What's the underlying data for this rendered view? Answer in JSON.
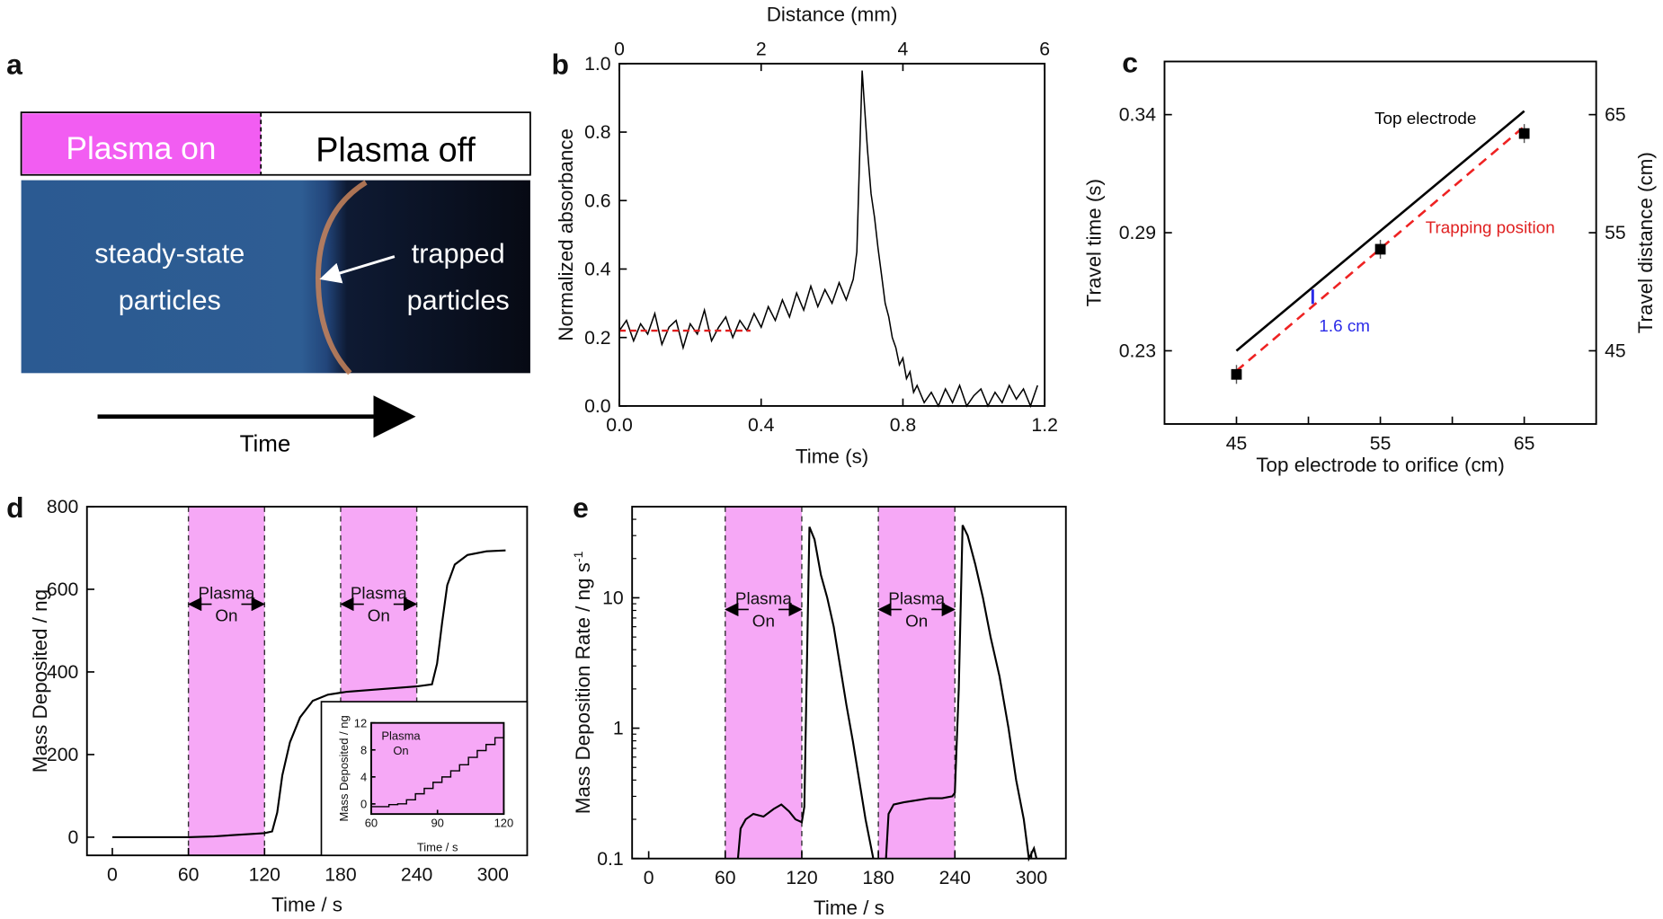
{
  "panel_labels": {
    "a": "a",
    "b": "b",
    "c": "c",
    "d": "d",
    "e": "e"
  },
  "panel_a": {
    "plasma_on": "Plasma on",
    "plasma_off": "Plasma off",
    "left_label": [
      "steady-state",
      "particles"
    ],
    "right_label": [
      "trapped",
      "particles"
    ],
    "arrow_label": "Time",
    "colors": {
      "plasma_on": "#f25df2",
      "steady": "#2e5d93",
      "trapped": "#0b1020",
      "front": "#c8845a"
    }
  },
  "chart_data": [
    {
      "id": "b",
      "type": "line",
      "xlabel": "Time (s)",
      "x2label": "Distance (mm)",
      "ylabel": "Normalized absorbance",
      "xlim": [
        0,
        1.2
      ],
      "x2lim": [
        0,
        6
      ],
      "ylim": [
        0,
        1.0
      ],
      "xticks": [
        {
          "v": 0,
          "l": "0.0"
        },
        {
          "v": 0.4,
          "l": "0.4"
        },
        {
          "v": 0.8,
          "l": "0.8"
        },
        {
          "v": 1.2,
          "l": "1.2"
        }
      ],
      "x2ticks": [
        {
          "v": 0,
          "l": "0"
        },
        {
          "v": 2,
          "l": "2"
        },
        {
          "v": 4,
          "l": "4"
        },
        {
          "v": 6,
          "l": "6"
        }
      ],
      "yticks": [
        {
          "v": 0,
          "l": "0.0"
        },
        {
          "v": 0.2,
          "l": "0.2"
        },
        {
          "v": 0.4,
          "l": "0.4"
        },
        {
          "v": 0.6,
          "l": "0.6"
        },
        {
          "v": 0.8,
          "l": "0.8"
        },
        {
          "v": 1.0,
          "l": "1.0"
        }
      ],
      "series": [
        {
          "color": "#000000",
          "points": [
            [
              0,
              0.22
            ],
            [
              0.02,
              0.25
            ],
            [
              0.04,
              0.19
            ],
            [
              0.06,
              0.24
            ],
            [
              0.08,
              0.21
            ],
            [
              0.1,
              0.27
            ],
            [
              0.12,
              0.18
            ],
            [
              0.14,
              0.23
            ],
            [
              0.16,
              0.25
            ],
            [
              0.18,
              0.17
            ],
            [
              0.2,
              0.24
            ],
            [
              0.22,
              0.21
            ],
            [
              0.24,
              0.28
            ],
            [
              0.26,
              0.19
            ],
            [
              0.28,
              0.23
            ],
            [
              0.3,
              0.26
            ],
            [
              0.32,
              0.2
            ],
            [
              0.34,
              0.25
            ],
            [
              0.36,
              0.22
            ],
            [
              0.38,
              0.27
            ],
            [
              0.4,
              0.23
            ],
            [
              0.42,
              0.29
            ],
            [
              0.44,
              0.25
            ],
            [
              0.46,
              0.31
            ],
            [
              0.48,
              0.26
            ],
            [
              0.5,
              0.33
            ],
            [
              0.52,
              0.28
            ],
            [
              0.54,
              0.35
            ],
            [
              0.56,
              0.29
            ],
            [
              0.58,
              0.34
            ],
            [
              0.6,
              0.3
            ],
            [
              0.62,
              0.36
            ],
            [
              0.64,
              0.31
            ],
            [
              0.66,
              0.37
            ],
            [
              0.67,
              0.45
            ],
            [
              0.68,
              0.8
            ],
            [
              0.685,
              0.98
            ],
            [
              0.69,
              0.9
            ],
            [
              0.7,
              0.75
            ],
            [
              0.71,
              0.62
            ],
            [
              0.72,
              0.55
            ],
            [
              0.73,
              0.46
            ],
            [
              0.74,
              0.38
            ],
            [
              0.75,
              0.3
            ],
            [
              0.76,
              0.26
            ],
            [
              0.77,
              0.2
            ],
            [
              0.78,
              0.17
            ],
            [
              0.79,
              0.12
            ],
            [
              0.8,
              0.14
            ],
            [
              0.81,
              0.08
            ],
            [
              0.82,
              0.1
            ],
            [
              0.83,
              0.04
            ],
            [
              0.84,
              0.06
            ],
            [
              0.86,
              0.01
            ],
            [
              0.88,
              0.04
            ],
            [
              0.9,
              0.0
            ],
            [
              0.92,
              0.05
            ],
            [
              0.94,
              0.01
            ],
            [
              0.96,
              0.06
            ],
            [
              0.98,
              0.0
            ],
            [
              1.0,
              0.03
            ],
            [
              1.02,
              0.05
            ],
            [
              1.04,
              0.0
            ],
            [
              1.06,
              0.04
            ],
            [
              1.08,
              0.01
            ],
            [
              1.1,
              0.06
            ],
            [
              1.12,
              0.02
            ],
            [
              1.14,
              0.05
            ],
            [
              1.16,
              0.0
            ],
            [
              1.18,
              0.06
            ]
          ]
        }
      ],
      "reference_line": {
        "y": 0.22,
        "x": [
          0,
          0.37
        ],
        "color": "#e02020",
        "style": "dashed"
      }
    },
    {
      "id": "c",
      "type": "scatter",
      "xlabel": "Top electrode to orifice (cm)",
      "ylabel": "Travel time (s)",
      "y2label": "Travel distance (cm)",
      "xlim": [
        40,
        70
      ],
      "ylim": [
        38.8,
        69.5
      ],
      "xticks": [
        {
          "v": 45,
          "l": "45"
        },
        {
          "v": 50,
          "l": ""
        },
        {
          "v": 55,
          "l": "55"
        },
        {
          "v": 60,
          "l": ""
        },
        {
          "v": 65,
          "l": "65"
        }
      ],
      "yticks_left": [
        {
          "v": 45,
          "l": "0.23"
        },
        {
          "v": 55,
          "l": "0.29"
        },
        {
          "v": 65,
          "l": "0.34"
        }
      ],
      "yticks_right": [
        {
          "v": 45,
          "l": "45"
        },
        {
          "v": 55,
          "l": "55"
        },
        {
          "v": 65,
          "l": "65"
        }
      ],
      "points": [
        {
          "x": 45,
          "y": 43.0,
          "err": 0.8
        },
        {
          "x": 55,
          "y": 53.6,
          "err": 0.8
        },
        {
          "x": 65,
          "y": 63.4,
          "err": 0.8
        }
      ],
      "lines": [
        {
          "name": "Top electrode",
          "color": "#000000",
          "style": "solid",
          "points": [
            [
              45,
              45.0
            ],
            [
              65,
              65.3
            ]
          ]
        },
        {
          "name": "Trapping position",
          "color": "#ee2222",
          "style": "dashed",
          "points": [
            [
              45,
              43.3
            ],
            [
              65,
              64.0
            ]
          ]
        }
      ],
      "annotation": {
        "text": "1.6 cm",
        "color": "#2a2ae8",
        "x": 50.3
      }
    },
    {
      "id": "d",
      "type": "line",
      "xlabel": "Time / s",
      "ylabel": "Mass Deposited / ng",
      "xlim": [
        -20,
        327
      ],
      "ylim": [
        -44,
        800
      ],
      "xticks": [
        {
          "v": 0,
          "l": "0"
        },
        {
          "v": 60,
          "l": "60"
        },
        {
          "v": 120,
          "l": "120"
        },
        {
          "v": 180,
          "l": "180"
        },
        {
          "v": 240,
          "l": "240"
        },
        {
          "v": 300,
          "l": "300"
        }
      ],
      "yticks": [
        {
          "v": 0,
          "l": "0"
        },
        {
          "v": 200,
          "l": "200"
        },
        {
          "v": 400,
          "l": "400"
        },
        {
          "v": 600,
          "l": "600"
        },
        {
          "v": 800,
          "l": "800"
        }
      ],
      "bands": [
        [
          60,
          120
        ],
        [
          180,
          240
        ]
      ],
      "band_color": "#f6a8f6",
      "band_label": [
        "Plasma",
        "On"
      ],
      "series": [
        {
          "color": "#000000",
          "points": [
            [
              0,
              0
            ],
            [
              30,
              0
            ],
            [
              60,
              0
            ],
            [
              80,
              2
            ],
            [
              100,
              6
            ],
            [
              120,
              10
            ],
            [
              126,
              14
            ],
            [
              130,
              60
            ],
            [
              134,
              150
            ],
            [
              140,
              230
            ],
            [
              148,
              290
            ],
            [
              158,
              330
            ],
            [
              170,
              345
            ],
            [
              185,
              352
            ],
            [
              210,
              358
            ],
            [
              240,
              365
            ],
            [
              252,
              370
            ],
            [
              256,
              420
            ],
            [
              260,
              520
            ],
            [
              264,
              610
            ],
            [
              270,
              660
            ],
            [
              280,
              683
            ],
            [
              295,
              692
            ],
            [
              310,
              694
            ]
          ]
        }
      ],
      "inset": {
        "xlabel": "Time / s",
        "ylabel": "Mass Deposited / ng",
        "label": [
          "Plasma",
          "On"
        ],
        "xlim": [
          60,
          120
        ],
        "ylim": [
          -1.5,
          12
        ],
        "xticks": [
          {
            "v": 60,
            "l": "60"
          },
          {
            "v": 90,
            "l": "90"
          },
          {
            "v": 120,
            "l": "120"
          }
        ],
        "yticks": [
          {
            "v": 0,
            "l": "0"
          },
          {
            "v": 4,
            "l": "4"
          },
          {
            "v": 8,
            "l": "8"
          },
          {
            "v": 12,
            "l": "12"
          }
        ],
        "points": [
          [
            60,
            -0.4
          ],
          [
            66,
            -0.4
          ],
          [
            68,
            -0.1
          ],
          [
            72,
            0
          ],
          [
            76,
            0.6
          ],
          [
            80,
            1.5
          ],
          [
            84,
            2.3
          ],
          [
            88,
            3.2
          ],
          [
            92,
            4.0
          ],
          [
            96,
            4.9
          ],
          [
            100,
            5.8
          ],
          [
            104,
            6.9
          ],
          [
            108,
            7.9
          ],
          [
            112,
            8.8
          ],
          [
            116,
            9.8
          ],
          [
            120,
            10.8
          ]
        ]
      }
    },
    {
      "id": "e",
      "type": "line",
      "yscale": "log",
      "xlabel": "Time / s",
      "ylabel": "Mass Deposition Rate / ng s",
      "ylabel_sup": "-1",
      "xlim": [
        -13,
        327
      ],
      "ylim": [
        0.1,
        50
      ],
      "xticks": [
        {
          "v": 0,
          "l": "0"
        },
        {
          "v": 60,
          "l": "60"
        },
        {
          "v": 120,
          "l": "120"
        },
        {
          "v": 180,
          "l": "180"
        },
        {
          "v": 240,
          "l": "240"
        },
        {
          "v": 300,
          "l": "300"
        }
      ],
      "yticks": [
        {
          "v": 0.1,
          "l": "0.1"
        },
        {
          "v": 1,
          "l": "1"
        },
        {
          "v": 10,
          "l": "10"
        }
      ],
      "bands": [
        [
          60,
          120
        ],
        [
          180,
          240
        ]
      ],
      "band_color": "#f6a8f6",
      "band_label": [
        "Plasma",
        "On"
      ],
      "series": [
        {
          "color": "#000000",
          "points": [
            [
              70,
              0.1
            ],
            [
              72,
              0.17
            ],
            [
              76,
              0.2
            ],
            [
              82,
              0.22
            ],
            [
              90,
              0.21
            ],
            [
              98,
              0.24
            ],
            [
              104,
              0.26
            ],
            [
              110,
              0.23
            ],
            [
              115,
              0.2
            ],
            [
              120,
              0.19
            ],
            [
              122,
              0.25
            ],
            [
              124,
              3
            ],
            [
              126,
              35
            ],
            [
              130,
              28
            ],
            [
              135,
              15
            ],
            [
              140,
              10
            ],
            [
              145,
              6
            ],
            [
              150,
              3
            ],
            [
              155,
              1.5
            ],
            [
              160,
              0.8
            ],
            [
              165,
              0.4
            ],
            [
              170,
              0.2
            ],
            [
              176,
              0.1
            ]
          ]
        },
        {
          "color": "#000000",
          "points": [
            [
              186,
              0.1
            ],
            [
              188,
              0.22
            ],
            [
              192,
              0.26
            ],
            [
              200,
              0.27
            ],
            [
              210,
              0.28
            ],
            [
              220,
              0.29
            ],
            [
              230,
              0.29
            ],
            [
              238,
              0.3
            ],
            [
              240,
              0.32
            ],
            [
              243,
              2
            ],
            [
              246,
              36
            ],
            [
              250,
              30
            ],
            [
              256,
              18
            ],
            [
              262,
              10
            ],
            [
              268,
              5
            ],
            [
              275,
              2.5
            ],
            [
              282,
              1
            ],
            [
              288,
              0.4
            ],
            [
              294,
              0.2
            ],
            [
              298,
              0.1
            ],
            [
              302,
              0.12
            ],
            [
              304,
              0.1
            ]
          ]
        }
      ]
    }
  ]
}
